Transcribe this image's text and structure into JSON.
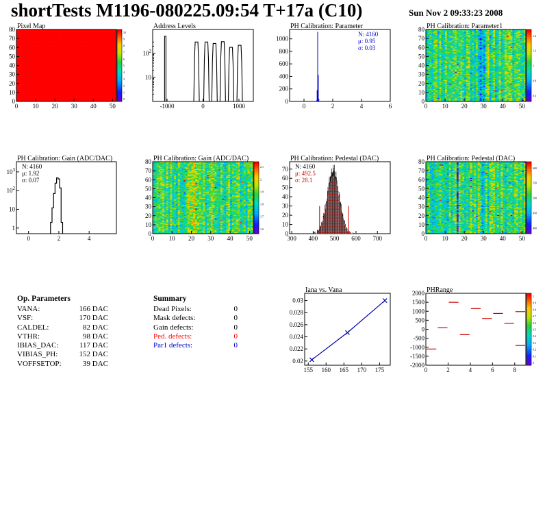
{
  "page": {
    "title": "shortTests M1196-080225.09:54 T+17a (C10)",
    "date": "Sun Nov  2 09:33:23 2008"
  },
  "chart_data": [
    {
      "id": "pixel_map",
      "type": "heatmap",
      "title": "Pixel Map",
      "xlim": [
        0,
        52
      ],
      "ylim": [
        0,
        80
      ],
      "xticks": [
        "0",
        "10",
        "20",
        "30",
        "40",
        "50"
      ],
      "yticks": [
        "0",
        "10",
        "20",
        "30",
        "40",
        "50",
        "60",
        "70",
        "80"
      ],
      "fill_color": "#ff0000",
      "palette": {
        "min": 0,
        "max": 10,
        "labels": [
          "0",
          "1",
          "2",
          "3",
          "4",
          "5",
          "6",
          "7",
          "8",
          "9",
          "10"
        ]
      }
    },
    {
      "id": "address_levels",
      "type": "bar",
      "title": "Address Levels",
      "xlim": [
        -1400,
        1400
      ],
      "log_y": true,
      "xticks": [
        "-1000",
        "0",
        "1000"
      ],
      "yticks": [
        "10",
        "10^2"
      ],
      "peaks": [
        -1050,
        -180,
        95,
        320,
        550,
        780,
        1020
      ]
    },
    {
      "id": "ph_calibration_parameter",
      "type": "bar",
      "title": "PH Calibration: Parameter",
      "xlim": [
        -1,
        6
      ],
      "ylim": [
        0,
        1150
      ],
      "xticks": [
        "0",
        "2",
        "4",
        "6"
      ],
      "yticks": [
        "0",
        "200",
        "400",
        "600",
        "800",
        "1000"
      ],
      "bins": [
        [
          0.87,
          15
        ],
        [
          0.91,
          180
        ],
        [
          0.95,
          1110
        ],
        [
          0.99,
          420
        ],
        [
          1.03,
          40
        ]
      ],
      "stats": {
        "N": "N: 4160",
        "mu": "μ: 0.95",
        "sigma": "σ: 0.03"
      },
      "stats_color": "#0000cc"
    },
    {
      "id": "ph_calibration_parameter1",
      "type": "heatmap",
      "title": "PH Calibration: Parameter1",
      "xlim": [
        0,
        52
      ],
      "ylim": [
        0,
        80
      ],
      "xticks": [
        "0",
        "10",
        "20",
        "30",
        "40",
        "50"
      ],
      "yticks": [
        "0",
        "10",
        "20",
        "30",
        "40",
        "50",
        "60",
        "70",
        "80"
      ],
      "palette": {
        "labels": [
          "0.6",
          "0.8",
          "1",
          "1.2",
          "1.4"
        ]
      }
    },
    {
      "id": "ph_calibration_gain_hist",
      "type": "bar",
      "title": "PH Calibration: Gain (ADC/DAC)",
      "xlim": [
        -0.8,
        5.8
      ],
      "log_y": true,
      "xticks": [
        "0",
        "2",
        "4"
      ],
      "yticks": [
        "1",
        "10",
        "10^2",
        "10^3"
      ],
      "bins": [
        [
          1.5,
          2
        ],
        [
          1.6,
          12
        ],
        [
          1.7,
          70
        ],
        [
          1.8,
          250
        ],
        [
          1.9,
          480
        ],
        [
          2.0,
          420
        ],
        [
          2.1,
          140
        ],
        [
          2.2,
          2
        ]
      ],
      "stats": {
        "N": "N: 4160",
        "mu": "μ: 1.92",
        "sigma": "σ: 0.07"
      },
      "stats_color": "#000000"
    },
    {
      "id": "ph_calibration_gain_map",
      "type": "heatmap",
      "title": "PH Calibration: Gain (ADC/DAC)",
      "xlim": [
        0,
        52
      ],
      "ylim": [
        0,
        80
      ],
      "xticks": [
        "0",
        "10",
        "20",
        "30",
        "40",
        "50"
      ],
      "yticks": [
        "0",
        "10",
        "20",
        "30",
        "40",
        "50",
        "60",
        "70",
        "80"
      ],
      "palette": {
        "labels": [
          "1.6",
          "1.7",
          "1.8",
          "1.9",
          "2",
          "2.1"
        ]
      }
    },
    {
      "id": "ph_calibration_pedestal_hist",
      "type": "bar",
      "title": "PH Calibration: Pedestal (DAC)",
      "xlim": [
        290,
        760
      ],
      "ylim": [
        0,
        78
      ],
      "xticks": [
        "300",
        "400",
        "500",
        "600",
        "700"
      ],
      "yticks": [
        "0",
        "10",
        "20",
        "30",
        "40",
        "50",
        "60",
        "70"
      ],
      "mean": 492.5,
      "sigma": 28.1,
      "peak": 70,
      "cut_lines": [
        430,
        565
      ],
      "stats": {
        "N": "N: 4160",
        "mu": "μ: 492.5",
        "sigma": "σ: 28.1"
      },
      "stats_color": "#cc0000"
    },
    {
      "id": "ph_calibration_pedestal_map",
      "type": "heatmap",
      "title": "PH Calibration: Pedestal (DAC)",
      "xlim": [
        0,
        52
      ],
      "ylim": [
        0,
        80
      ],
      "xticks": [
        "0",
        "10",
        "20",
        "30",
        "40",
        "50"
      ],
      "yticks": [
        "0",
        "10",
        "20",
        "30",
        "40",
        "50",
        "60",
        "70",
        "80"
      ],
      "palette": {
        "labels": [
          "400",
          "450",
          "500",
          "550",
          "600"
        ]
      }
    },
    {
      "id": "iana_vs_vana",
      "type": "line",
      "title": "Iana vs. Vana",
      "xlim": [
        154,
        178
      ],
      "ylim": [
        0.0193,
        0.0312
      ],
      "xticks": [
        "155",
        "160",
        "165",
        "170",
        "175"
      ],
      "yticks": [
        "0.02",
        "0.022",
        "0.024",
        "0.026",
        "0.028",
        "0.03"
      ],
      "x": [
        156,
        166,
        176.5
      ],
      "y": [
        0.0202,
        0.0247,
        0.03
      ]
    },
    {
      "id": "phrange",
      "type": "scatter",
      "title": "PHRange",
      "xlim": [
        0,
        9
      ],
      "ylim": [
        -2000,
        2000
      ],
      "xticks": [
        "0",
        "2",
        "4",
        "6",
        "8"
      ],
      "yticks": [
        "-2000",
        "-1500",
        "-1000",
        "-500",
        "0",
        "500",
        "1000",
        "1500",
        "2000"
      ],
      "segments": [
        [
          0.0,
          1.0,
          -1100
        ],
        [
          1.0,
          2.0,
          80
        ],
        [
          2.0,
          3.0,
          1500
        ],
        [
          3.0,
          4.0,
          -300
        ],
        [
          4.0,
          5.0,
          1150
        ],
        [
          5.0,
          6.0,
          600
        ],
        [
          6.0,
          7.0,
          880
        ],
        [
          7.0,
          8.0,
          330
        ],
        [
          8.0,
          9.0,
          980
        ],
        [
          8.0,
          9.0,
          -900
        ]
      ],
      "palette": {
        "labels": [
          "0",
          "0.1",
          "0.2",
          "0.3",
          "0.4",
          "0.5",
          "0.6",
          "0.7",
          "0.8",
          "0.9",
          "1"
        ]
      }
    }
  ],
  "op_parameters": {
    "title": "Op. Parameters",
    "rows": [
      {
        "name": "VANA:",
        "value": "166 DAC"
      },
      {
        "name": "VSF:",
        "value": "170 DAC"
      },
      {
        "name": "CALDEL:",
        "value": "82 DAC"
      },
      {
        "name": "VTHR:",
        "value": "98 DAC"
      },
      {
        "name": "IBIAS_DAC:",
        "value": "117 DAC"
      },
      {
        "name": "VIBIAS_PH:",
        "value": "152 DAC"
      },
      {
        "name": "VOFFSETOP:",
        "value": "39 DAC"
      }
    ]
  },
  "summary": {
    "title": "Summary",
    "rows": [
      {
        "name": "Dead Pixels:",
        "value": "0",
        "color": "#000000"
      },
      {
        "name": "Mask defects:",
        "value": "0",
        "color": "#000000"
      },
      {
        "name": "Gain defects:",
        "value": "0",
        "color": "#000000"
      },
      {
        "name": "Ped. defects:",
        "value": "0",
        "color": "#ff0000"
      },
      {
        "name": "Par1 defects:",
        "value": "0",
        "color": "#0000cc"
      }
    ]
  }
}
